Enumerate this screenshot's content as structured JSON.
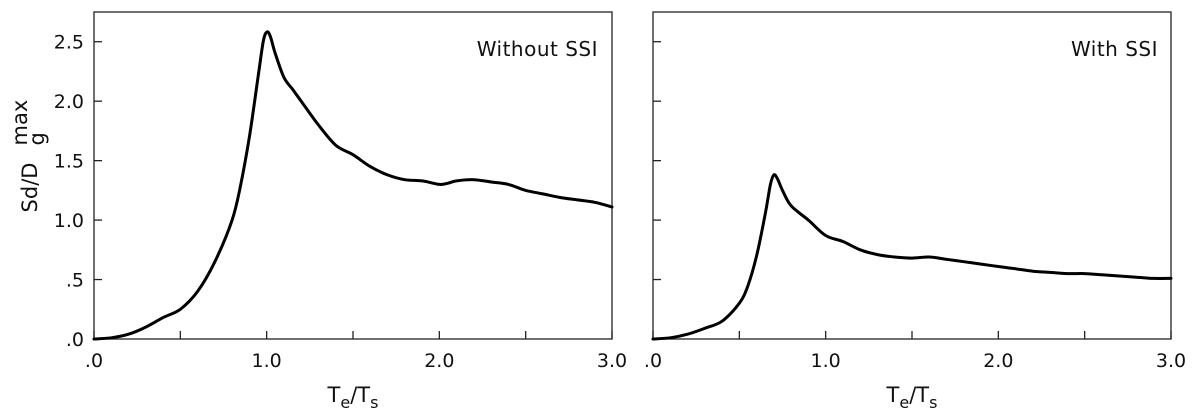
{
  "chart_data": [
    {
      "type": "line",
      "annotation": "Without SSI",
      "xlim": [
        0,
        3.0
      ],
      "ylim": [
        0,
        2.75
      ],
      "x_ticks": [
        0,
        0.5,
        1.0,
        1.5,
        2.0,
        2.5,
        3.0
      ],
      "x_tick_labels": [
        ".0",
        "",
        "1.0",
        "",
        "2.0",
        "",
        "3.0"
      ],
      "y_ticks": [
        0,
        0.5,
        1.0,
        1.5,
        2.0,
        2.5
      ],
      "y_tick_labels": [
        ".0",
        ".5",
        "1.0",
        "1.5",
        "2.0",
        "2.5"
      ],
      "xlabel": {
        "main": "T",
        "sub1": "e",
        "slash": "/",
        "main2": "T",
        "sub2": "s"
      },
      "ylabel": {
        "main": "Sd/D",
        "sub": "g",
        "sup": "max"
      },
      "series": [
        {
          "x": [
            0.0,
            0.1,
            0.2,
            0.3,
            0.4,
            0.5,
            0.6,
            0.7,
            0.8,
            0.85,
            0.9,
            0.95,
            0.98,
            1.0,
            1.02,
            1.05,
            1.1,
            1.15,
            1.2,
            1.3,
            1.4,
            1.5,
            1.6,
            1.7,
            1.8,
            1.9,
            2.0,
            2.05,
            2.1,
            2.2,
            2.3,
            2.4,
            2.5,
            2.6,
            2.7,
            2.8,
            2.9,
            3.0
          ],
          "y": [
            0.0,
            0.01,
            0.04,
            0.1,
            0.18,
            0.25,
            0.4,
            0.65,
            1.0,
            1.3,
            1.7,
            2.2,
            2.5,
            2.58,
            2.55,
            2.4,
            2.2,
            2.1,
            2.0,
            1.8,
            1.63,
            1.55,
            1.45,
            1.38,
            1.34,
            1.33,
            1.3,
            1.31,
            1.33,
            1.34,
            1.32,
            1.3,
            1.25,
            1.22,
            1.19,
            1.17,
            1.15,
            1.11
          ]
        }
      ]
    },
    {
      "type": "line",
      "annotation": "With SSI",
      "xlim": [
        0,
        3.0
      ],
      "ylim": [
        0,
        2.75
      ],
      "x_ticks": [
        0,
        0.5,
        1.0,
        1.5,
        2.0,
        2.5,
        3.0
      ],
      "x_tick_labels": [
        ".0",
        "",
        "1.0",
        "",
        "2.0",
        "",
        "3.0"
      ],
      "y_ticks": [
        0,
        0.5,
        1.0,
        1.5,
        2.0,
        2.5
      ],
      "y_tick_labels": [
        "",
        "",
        "",
        "",
        "",
        ""
      ],
      "xlabel": {
        "main": "T",
        "sub1": "e",
        "slash": "/",
        "main2": "T",
        "sub2": "s"
      },
      "series": [
        {
          "x": [
            0.0,
            0.1,
            0.2,
            0.3,
            0.4,
            0.5,
            0.55,
            0.6,
            0.65,
            0.68,
            0.7,
            0.72,
            0.75,
            0.8,
            0.9,
            1.0,
            1.1,
            1.2,
            1.3,
            1.4,
            1.5,
            1.6,
            1.7,
            1.8,
            1.9,
            2.0,
            2.1,
            2.2,
            2.3,
            2.4,
            2.5,
            2.6,
            2.7,
            2.8,
            2.9,
            3.0
          ],
          "y": [
            0.0,
            0.01,
            0.04,
            0.09,
            0.15,
            0.3,
            0.45,
            0.7,
            1.05,
            1.3,
            1.38,
            1.35,
            1.25,
            1.12,
            1.0,
            0.87,
            0.82,
            0.75,
            0.71,
            0.69,
            0.68,
            0.69,
            0.67,
            0.65,
            0.63,
            0.61,
            0.59,
            0.57,
            0.56,
            0.55,
            0.55,
            0.54,
            0.53,
            0.52,
            0.51,
            0.51
          ]
        }
      ]
    }
  ]
}
